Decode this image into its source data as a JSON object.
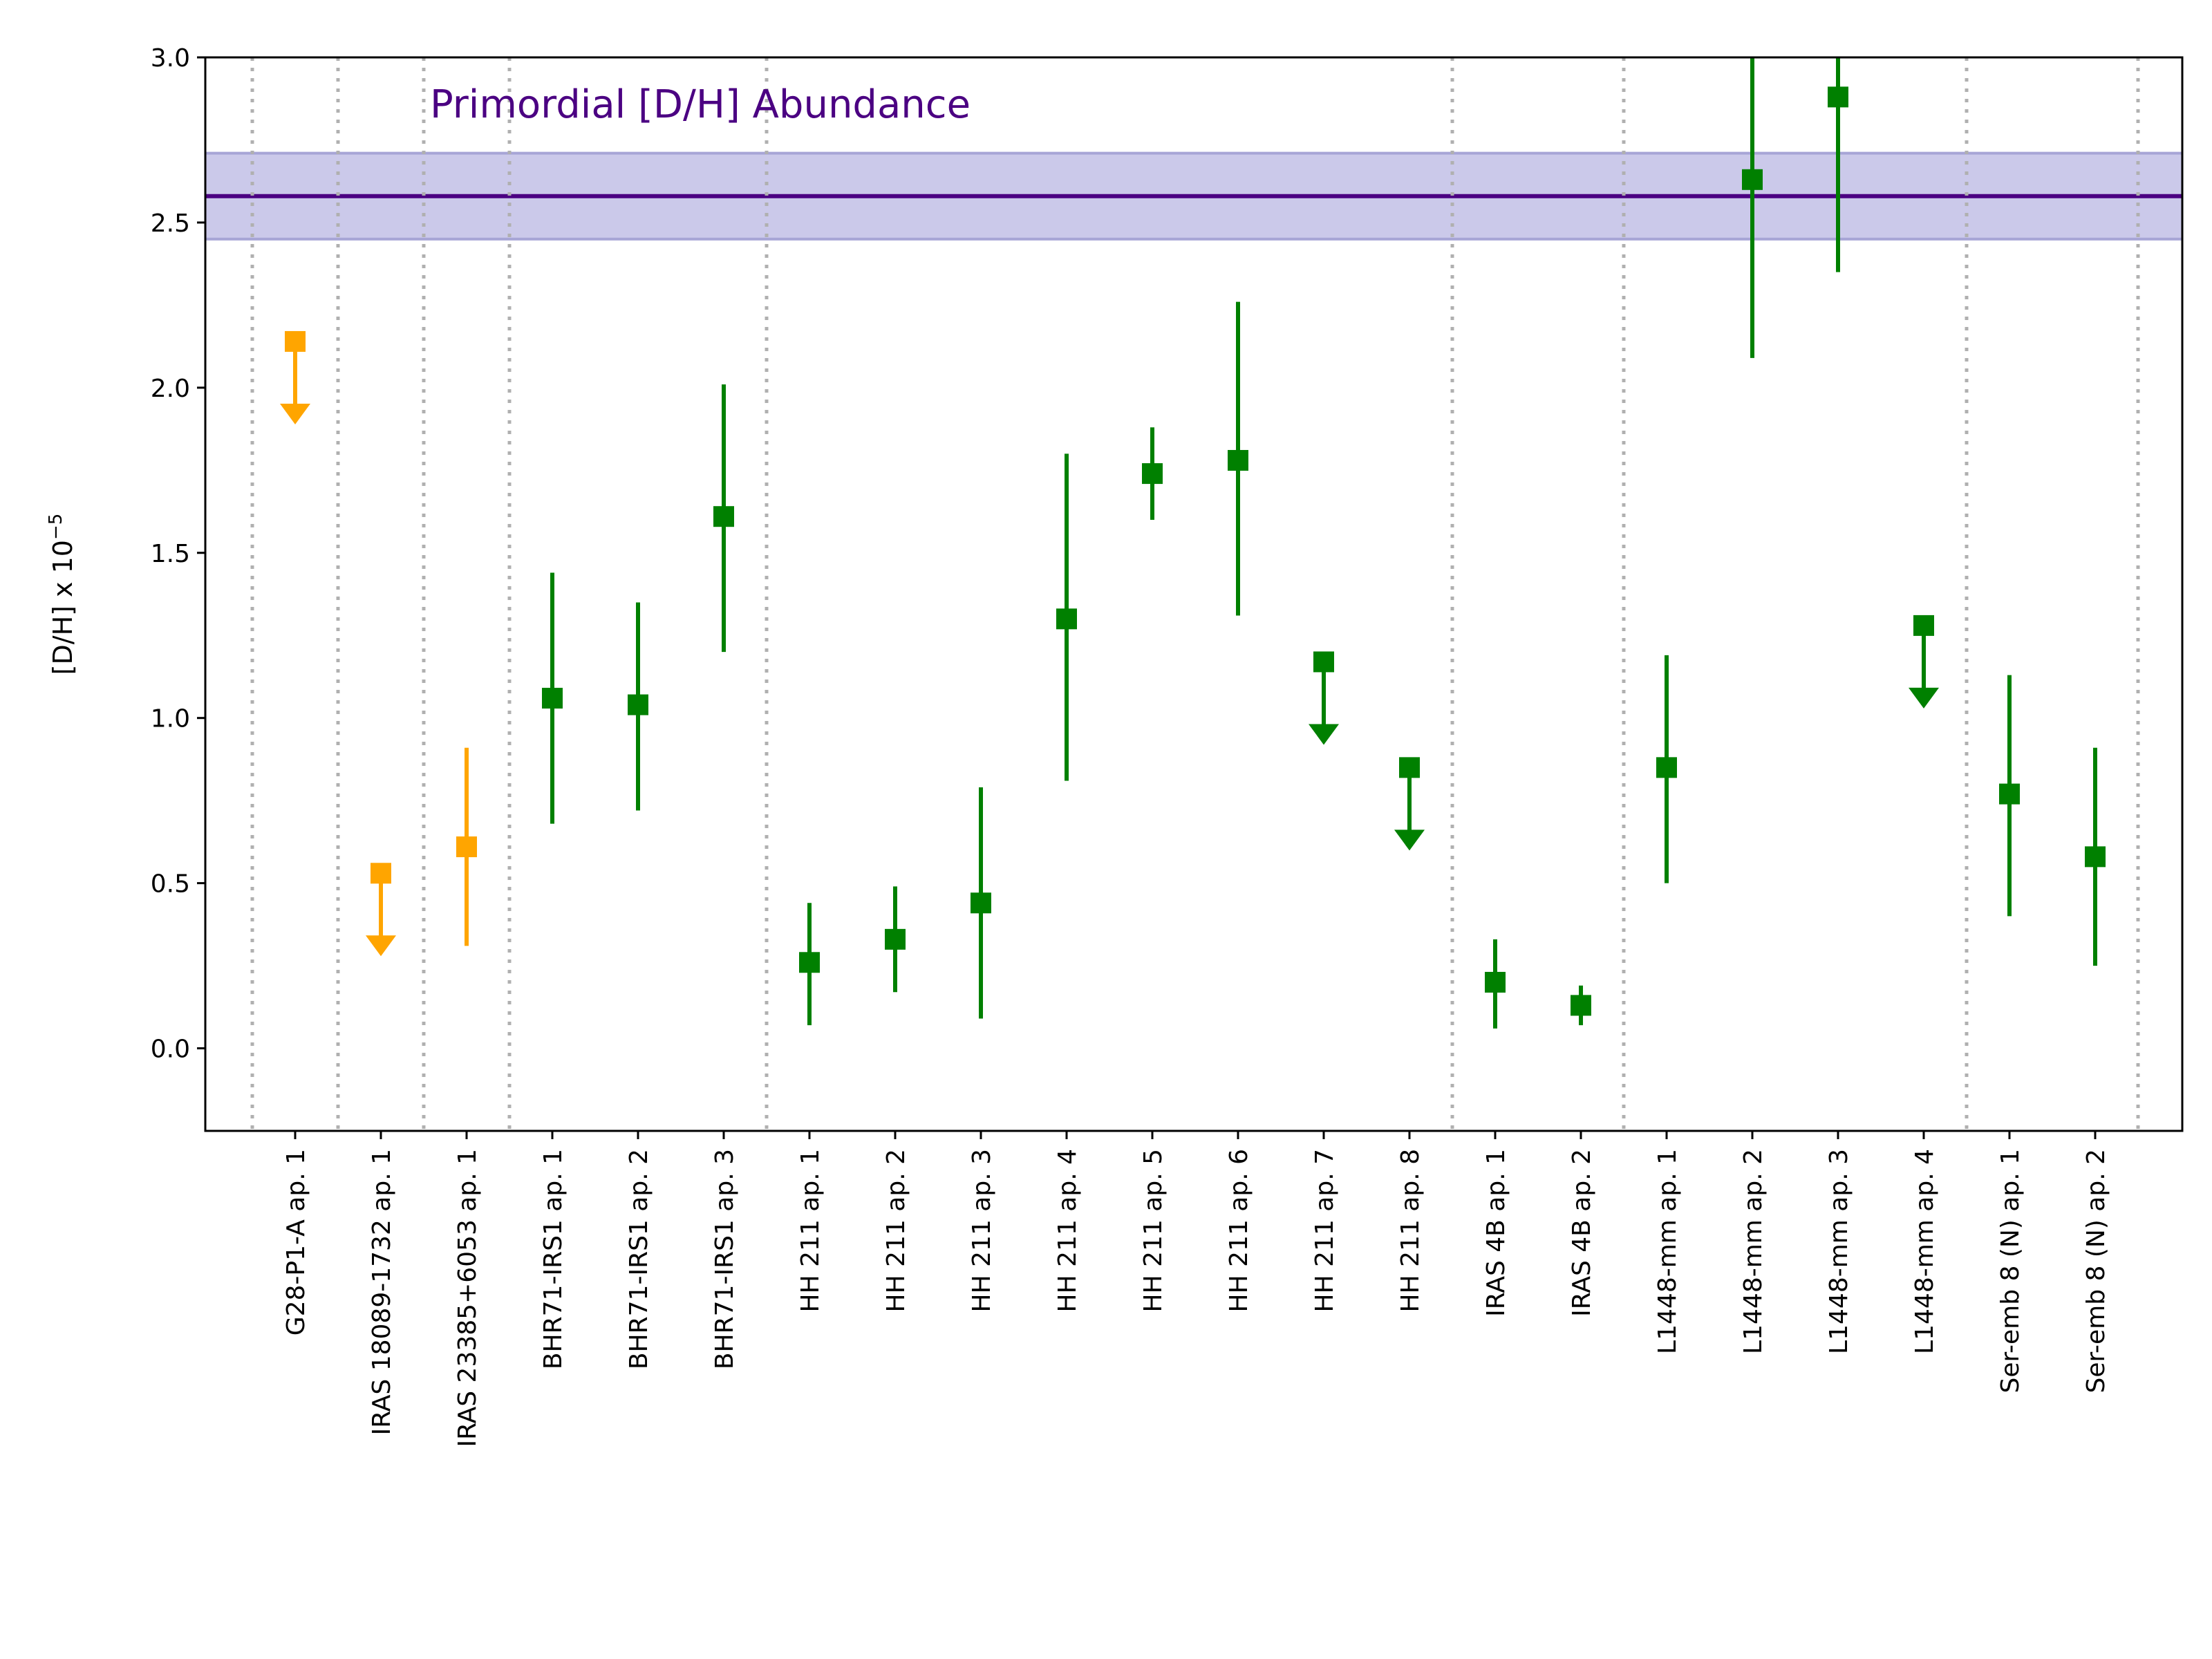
{
  "chart_data": {
    "type": "scatter",
    "title": "",
    "xlabel": "",
    "ylabel": "[D/H] x 10",
    "ylabel_exponent": "−5",
    "ylim": [
      -0.25,
      3.0
    ],
    "yticks": [
      {
        "value": 0.0,
        "label": "0.0"
      },
      {
        "value": 0.5,
        "label": "0.5"
      },
      {
        "value": 1.0,
        "label": "1.0"
      },
      {
        "value": 1.5,
        "label": "1.5"
      },
      {
        "value": 2.0,
        "label": "2.0"
      },
      {
        "value": 2.5,
        "label": "2.5"
      },
      {
        "value": 3.0,
        "label": "3.0"
      }
    ],
    "grid": false,
    "categories": [
      "G28-P1-A ap. 1",
      "IRAS 18089-1732 ap. 1",
      "IRAS 23385+6053 ap. 1",
      "BHR71-IRS1 ap. 1",
      "BHR71-IRS1 ap. 2",
      "BHR71-IRS1 ap. 3",
      "HH 211 ap. 1",
      "HH 211 ap. 2",
      "HH 211 ap. 3",
      "HH 211 ap. 4",
      "HH 211 ap. 5",
      "HH 211 ap. 6",
      "HH 211 ap. 7",
      "HH 211 ap. 8",
      "IRAS 4B ap. 1",
      "IRAS 4B ap. 2",
      "L1448-mm ap. 1",
      "L1448-mm ap. 2",
      "L1448-mm ap. 3",
      "L1448-mm ap. 4",
      "Ser-emb 8 (N) ap. 1",
      "Ser-emb 8 (N) ap. 2"
    ],
    "series": [
      {
        "color": "#ffa500",
        "marker": "square",
        "points": [
          {
            "category": "G28-P1-A ap. 1",
            "y": 2.14,
            "upper_limit": true
          },
          {
            "category": "IRAS 18089-1732 ap. 1",
            "y": 0.53,
            "upper_limit": true
          },
          {
            "category": "IRAS 23385+6053 ap. 1",
            "y": 0.61,
            "err_low": 0.31,
            "err_high": 0.91
          }
        ]
      },
      {
        "color": "#008000",
        "marker": "square",
        "points": [
          {
            "category": "BHR71-IRS1 ap. 1",
            "y": 1.06,
            "err_low": 0.68,
            "err_high": 1.44
          },
          {
            "category": "BHR71-IRS1 ap. 2",
            "y": 1.04,
            "err_low": 0.72,
            "err_high": 1.35
          },
          {
            "category": "BHR71-IRS1 ap. 3",
            "y": 1.61,
            "err_low": 1.2,
            "err_high": 2.01
          },
          {
            "category": "HH 211 ap. 1",
            "y": 0.26,
            "err_low": 0.07,
            "err_high": 0.44
          },
          {
            "category": "HH 211 ap. 2",
            "y": 0.33,
            "err_low": 0.17,
            "err_high": 0.49
          },
          {
            "category": "HH 211 ap. 3",
            "y": 0.44,
            "err_low": 0.09,
            "err_high": 0.79
          },
          {
            "category": "HH 211 ap. 4",
            "y": 1.3,
            "err_low": 0.81,
            "err_high": 1.8
          },
          {
            "category": "HH 211 ap. 5",
            "y": 1.74,
            "err_low": 1.6,
            "err_high": 1.88
          },
          {
            "category": "HH 211 ap. 6",
            "y": 1.78,
            "err_low": 1.31,
            "err_high": 2.26
          },
          {
            "category": "HH 211 ap. 7",
            "y": 1.17,
            "upper_limit": true
          },
          {
            "category": "HH 211 ap. 8",
            "y": 0.85,
            "upper_limit": true
          },
          {
            "category": "IRAS 4B ap. 1",
            "y": 0.2,
            "err_low": 0.06,
            "err_high": 0.33
          },
          {
            "category": "IRAS 4B ap. 2",
            "y": 0.13,
            "err_low": 0.07,
            "err_high": 0.19
          },
          {
            "category": "L1448-mm ap. 1",
            "y": 0.85,
            "err_low": 0.5,
            "err_high": 1.19
          },
          {
            "category": "L1448-mm ap. 2",
            "y": 2.63,
            "err_low": 2.09,
            "err_high": 3.0
          },
          {
            "category": "L1448-mm ap. 3",
            "y": 2.88,
            "err_low": 2.35,
            "err_high": 3.0
          },
          {
            "category": "L1448-mm ap. 4",
            "y": 1.28,
            "upper_limit": true
          },
          {
            "category": "Ser-emb 8 (N) ap. 1",
            "y": 0.77,
            "err_low": 0.4,
            "err_high": 1.13
          },
          {
            "category": "Ser-emb 8 (N) ap. 2",
            "y": 0.58,
            "err_low": 0.25,
            "err_high": 0.91
          }
        ]
      }
    ],
    "reference_band": {
      "label": "Primordial [D/H] Abundance",
      "value": 2.58,
      "low": 2.45,
      "high": 2.71,
      "line_color": "#4b0082",
      "band_color": "#cbc9ea",
      "band_edge_color": "#a7a5d6",
      "label_color": "#4b0082"
    },
    "separators": {
      "style": "dotted",
      "color": "#b0b0b0",
      "between": [
        [
          "G28-P1-A ap. 1",
          "IRAS 18089-1732 ap. 1"
        ],
        [
          "IRAS 18089-1732 ap. 1",
          "IRAS 23385+6053 ap. 1"
        ],
        [
          "IRAS 23385+6053 ap. 1",
          "BHR71-IRS1 ap. 1"
        ],
        [
          "BHR71-IRS1 ap. 3",
          "HH 211 ap. 1"
        ],
        [
          "HH 211 ap. 8",
          "IRAS 4B ap. 1"
        ],
        [
          "IRAS 4B ap. 2",
          "L1448-mm ap. 1"
        ],
        [
          "L1448-mm ap. 4",
          "Ser-emb 8 (N) ap. 1"
        ]
      ],
      "outer_edges": true
    }
  }
}
